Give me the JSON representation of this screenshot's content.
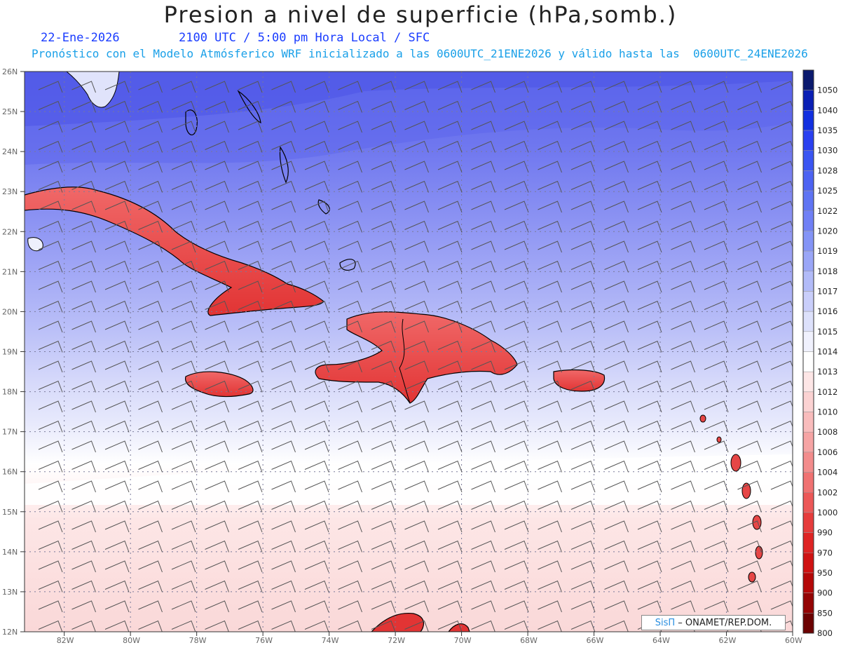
{
  "header": {
    "title": "Presion a nivel de superficie (hPa,somb.)",
    "date": "22-Ene-2026",
    "time_info": "2100 UTC / 5:00 pm Hora Local / SFC",
    "model_info": "Pronóstico con el Modelo Atmósferico WRF inicializado a las 0600UTC_21ENE2026 y válido hasta las  0600UTC_24ENE2026"
  },
  "map": {
    "lat_labels": [
      "26N",
      "25N",
      "24N",
      "23N",
      "22N",
      "21N",
      "20N",
      "19N",
      "18N",
      "17N",
      "16N",
      "15N",
      "14N",
      "13N",
      "12N"
    ],
    "lon_labels": [
      "82W",
      "80W",
      "78W",
      "76W",
      "74W",
      "72W",
      "70W",
      "68W",
      "66W",
      "64W",
      "62W",
      "60W"
    ],
    "lat_range": [
      12,
      26
    ],
    "lon_range": [
      -83.2,
      -60
    ],
    "grid": true
  },
  "colorbar": {
    "levels": [
      "1050",
      "1040",
      "1035",
      "1030",
      "1028",
      "1025",
      "1022",
      "1020",
      "1019",
      "1018",
      "1017",
      "1016",
      "1015",
      "1014",
      "1013",
      "1012",
      "1010",
      "1008",
      "1006",
      "1004",
      "1002",
      "1000",
      "990",
      "970",
      "950",
      "900",
      "850",
      "800"
    ],
    "colors": [
      "#0b1a6e",
      "#0a1fb4",
      "#1230e0",
      "#2a40f0",
      "#3a55f2",
      "#4d63f2",
      "#5f74f3",
      "#7080f5",
      "#8494f6",
      "#9aa6f7",
      "#b2bbf8",
      "#c9cefa",
      "#dde1fb",
      "#f0f1fd",
      "#ffffff",
      "#fde6e6",
      "#fbd2d2",
      "#f9bcbc",
      "#f6a4a4",
      "#f38c8c",
      "#f07272",
      "#ec5858",
      "#e63c3c",
      "#de2424",
      "#cf1212",
      "#b40808",
      "#940404",
      "#6c0202"
    ]
  },
  "credit": {
    "brand": "SisΠ",
    "text": " – ONAMET/REP.DOM."
  }
}
